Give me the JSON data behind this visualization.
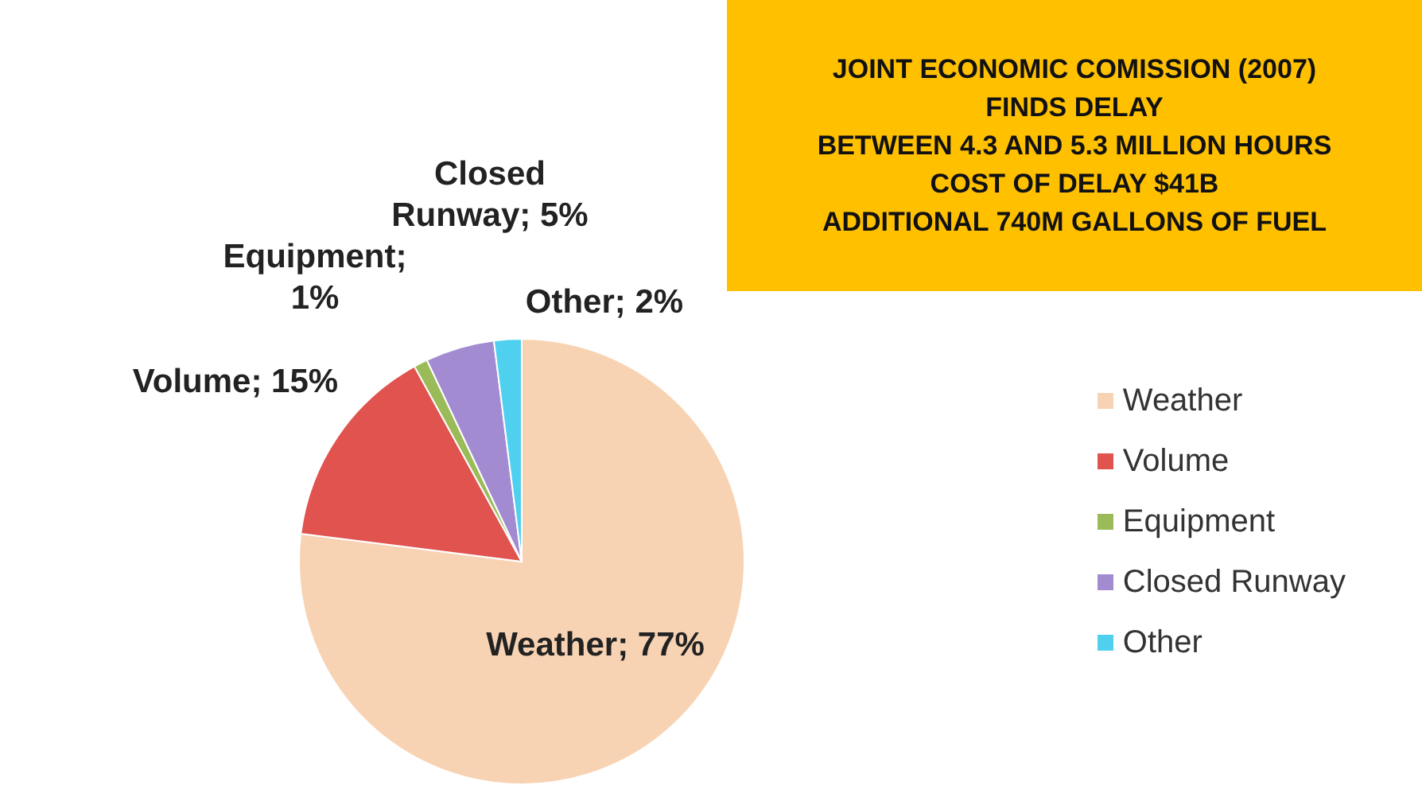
{
  "chart_data": {
    "type": "pie",
    "categories": [
      "Weather",
      "Volume",
      "Equipment",
      "Closed Runway",
      "Other"
    ],
    "values": [
      77,
      15,
      1,
      5,
      2
    ],
    "colors": [
      "#f8d3b3",
      "#e0534f",
      "#9bbb59",
      "#a28bd0",
      "#4fd0ee"
    ],
    "value_labels": [
      "Weather; 77%",
      "Volume; 15%",
      "Equipment; 1%",
      "Closed Runway; 5%",
      "Other; 2%"
    ],
    "legend": "right",
    "annotations": [
      "JOINT ECONOMIC COMISSION (2007)\nFINDS DELAY\nBETWEEN 4.3 AND 5.3 MILLION HOURS\nCOST OF DELAY $41B\nADDITIONAL 740M GALLONS OF FUEL"
    ]
  }
}
